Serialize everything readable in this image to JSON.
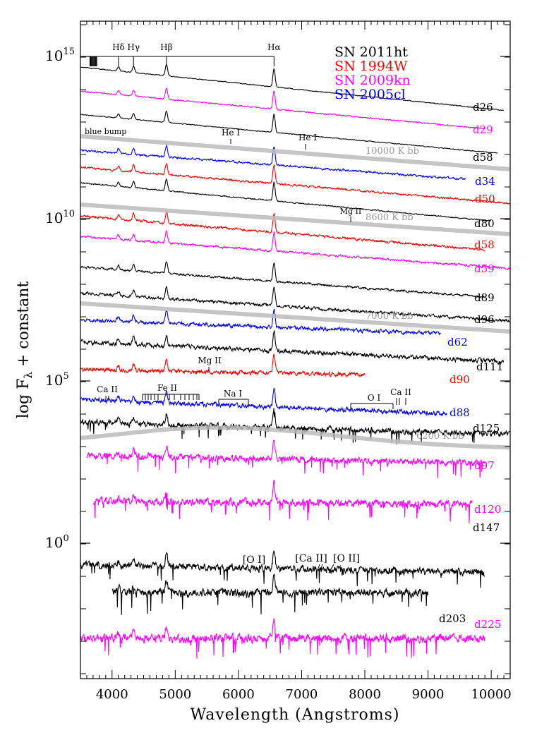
{
  "chart_data": {
    "type": "line",
    "title": "",
    "xlabel": "Wavelength (Angstroms)",
    "ylabel": "log Fλ + constant",
    "xlim": [
      3500,
      10300
    ],
    "x_ticks": [
      4000,
      5000,
      6000,
      7000,
      8000,
      9000,
      10000
    ],
    "y_ticks": [
      {
        "label": "10",
        "exponent": "15"
      },
      {
        "label": "10",
        "exponent": "10"
      },
      {
        "label": "10",
        "exponent": "5"
      },
      {
        "label": "10",
        "exponent": "0"
      }
    ],
    "grid": false,
    "legend": {
      "position": "top-right",
      "entries": [
        {
          "name": "SN 2011ht",
          "color": "#000000"
        },
        {
          "name": "SN 1994W",
          "color": "#ff0000"
        },
        {
          "name": "SN 2009kn",
          "color": "#ff00ff"
        },
        {
          "name": "SN 2005cl",
          "color": "#0000ff"
        }
      ]
    },
    "series": [
      {
        "name": "d26",
        "color": "#000000",
        "x_range": [
          3500,
          10200
        ]
      },
      {
        "name": "d29",
        "color": "#ff00ff",
        "x_range": [
          3500,
          9900
        ]
      },
      {
        "name": "d58",
        "color": "#000000",
        "x_range": [
          3500,
          10100
        ]
      },
      {
        "name": "d34",
        "color": "#0000ff",
        "x_range": [
          3500,
          9600
        ]
      },
      {
        "name": "d50",
        "color": "#ff0000",
        "x_range": [
          3500,
          10300
        ]
      },
      {
        "name": "d80",
        "color": "#000000",
        "x_range": [
          3500,
          10000
        ]
      },
      {
        "name": "d58",
        "color": "#ff0000",
        "x_range": [
          3500,
          9900
        ]
      },
      {
        "name": "d59",
        "color": "#ff00ff",
        "x_range": [
          3500,
          10300
        ]
      },
      {
        "name": "d89",
        "color": "#000000",
        "x_range": [
          3500,
          9900
        ]
      },
      {
        "name": "d96",
        "color": "#000000",
        "x_range": [
          3500,
          10300
        ]
      },
      {
        "name": "d62",
        "color": "#0000ff",
        "x_range": [
          3500,
          9200
        ]
      },
      {
        "name": "d111",
        "color": "#000000",
        "x_range": [
          3500,
          10200
        ]
      },
      {
        "name": "d90",
        "color": "#ff0000",
        "x_range": [
          3500,
          8000
        ]
      },
      {
        "name": "d88",
        "color": "#0000ff",
        "x_range": [
          3500,
          9300
        ]
      },
      {
        "name": "d125",
        "color": "#000000",
        "x_range": [
          3500,
          10300
        ]
      },
      {
        "name": "d97",
        "color": "#ff00ff",
        "x_range": [
          3600,
          9900
        ]
      },
      {
        "name": "d120",
        "color": "#ff00ff",
        "x_range": [
          3700,
          9700
        ]
      },
      {
        "name": "d147",
        "color": "#000000",
        "x_range": [
          3500,
          9900
        ]
      },
      {
        "name": "d203",
        "color": "#000000",
        "x_range": [
          4000,
          9000
        ]
      },
      {
        "name": "d225",
        "color": "#ff00ff",
        "x_range": [
          3500,
          9900
        ]
      }
    ],
    "blackbody_curves": [
      {
        "label": "10000 K bb",
        "color": "#bbbbbb"
      },
      {
        "label": "8600 K bb",
        "color": "#bbbbbb"
      },
      {
        "label": "7000 K bb",
        "color": "#bbbbbb"
      },
      {
        "label": "6200 K bb",
        "color": "#bbbbbb"
      }
    ],
    "line_ids": {
      "balmer": [
        {
          "label": "Hδ",
          "wavelength": 4102
        },
        {
          "label": "Hγ",
          "wavelength": 4340
        },
        {
          "label": "Hβ",
          "wavelength": 4861
        },
        {
          "label": "Hα",
          "wavelength": 6563
        }
      ],
      "annotations": [
        {
          "text": "blue bump",
          "wavelength": 3700
        },
        {
          "text": "He I",
          "wavelength": 5876
        },
        {
          "text": "He I",
          "wavelength": 7065
        },
        {
          "text": "Mg II",
          "wavelength": 7890
        },
        {
          "text": "Mg II",
          "wavelength": 5530
        },
        {
          "text": "Ca II",
          "wavelength": 3950
        },
        {
          "text": "Fe II",
          "wavelength": 5000
        },
        {
          "text": "Na I",
          "wavelength": 5890
        },
        {
          "text": "O I",
          "wavelength": 8100
        },
        {
          "text": "Ca II",
          "wavelength": 8600
        },
        {
          "text": "[O I]",
          "wavelength": 6300
        },
        {
          "text": "[Ca II]",
          "wavelength": 7300
        },
        {
          "text": "[O II]",
          "wavelength": 7325
        }
      ]
    }
  }
}
